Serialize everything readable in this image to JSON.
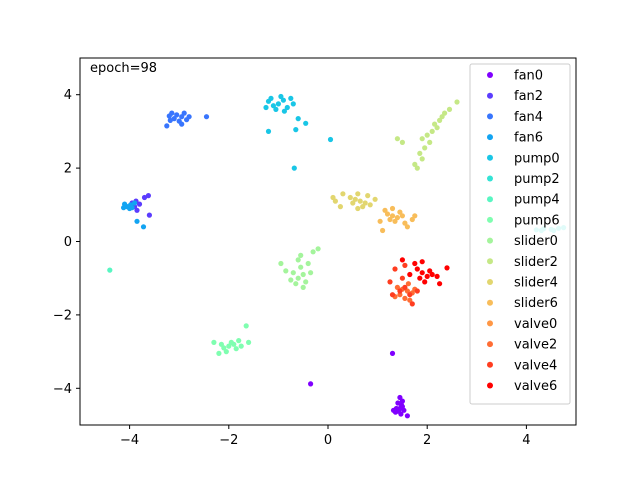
{
  "chart_data": {
    "type": "scatter",
    "annotation": "epoch=98",
    "xlim": [
      -5,
      5
    ],
    "ylim": [
      -5,
      5
    ],
    "xticks": [
      -4,
      -2,
      0,
      2,
      4
    ],
    "yticks": [
      -4,
      -2,
      0,
      2,
      4
    ],
    "xtick_labels": [
      "−4",
      "−2",
      "0",
      "2",
      "4"
    ],
    "ytick_labels": [
      "−4",
      "−2",
      "0",
      "2",
      "4"
    ],
    "grid": false,
    "legend_position": "upper right",
    "series": [
      {
        "name": "fan0",
        "color": "#8000ff",
        "points": [
          [
            1.45,
            -4.55
          ],
          [
            1.48,
            -4.45
          ],
          [
            1.42,
            -4.62
          ],
          [
            1.5,
            -4.5
          ],
          [
            1.38,
            -4.55
          ],
          [
            1.47,
            -4.7
          ],
          [
            1.53,
            -4.6
          ],
          [
            1.41,
            -4.4
          ],
          [
            1.5,
            -4.35
          ],
          [
            1.45,
            -4.25
          ],
          [
            1.36,
            -4.65
          ],
          [
            1.6,
            -4.75
          ],
          [
            1.32,
            -4.6
          ],
          [
            1.3,
            -3.05
          ],
          [
            -0.35,
            -3.88
          ]
        ]
      },
      {
        "name": "fan2",
        "color": "#5b3cfe",
        "points": [
          [
            -3.95,
            1.05
          ],
          [
            -3.87,
            1.1
          ],
          [
            -3.8,
            1.02
          ],
          [
            -3.7,
            1.2
          ],
          [
            -3.62,
            1.25
          ],
          [
            -3.9,
            0.95
          ],
          [
            -3.6,
            0.72
          ],
          [
            -3.85,
            0.85
          ]
        ]
      },
      {
        "name": "fan4",
        "color": "#3875fd",
        "points": [
          [
            -3.05,
            3.45
          ],
          [
            -2.95,
            3.4
          ],
          [
            -3.15,
            3.5
          ],
          [
            -2.85,
            3.32
          ],
          [
            -3.1,
            3.35
          ],
          [
            -2.9,
            3.5
          ],
          [
            -3.2,
            3.42
          ],
          [
            -3.0,
            3.28
          ],
          [
            -2.8,
            3.4
          ],
          [
            -3.18,
            3.3
          ],
          [
            -3.25,
            3.15
          ],
          [
            -2.95,
            3.2
          ],
          [
            -2.45,
            3.4
          ]
        ]
      },
      {
        "name": "fan6",
        "color": "#12a4f2",
        "points": [
          [
            -4.05,
            0.95
          ],
          [
            -3.95,
            0.92
          ],
          [
            -4.1,
            1.02
          ],
          [
            -3.98,
            1.0
          ],
          [
            -4.0,
            0.9
          ],
          [
            -3.9,
            1.05
          ],
          [
            -4.12,
            0.92
          ],
          [
            -3.85,
            0.55
          ],
          [
            -3.72,
            0.4
          ]
        ]
      },
      {
        "name": "pump0",
        "color": "#19c6e6",
        "points": [
          [
            -1.0,
            3.75
          ],
          [
            -0.9,
            3.85
          ],
          [
            -1.1,
            3.7
          ],
          [
            -0.82,
            3.65
          ],
          [
            -0.95,
            3.95
          ],
          [
            -1.2,
            3.82
          ],
          [
            -0.7,
            3.75
          ],
          [
            -1.05,
            3.6
          ],
          [
            -0.88,
            3.55
          ],
          [
            -1.15,
            3.9
          ],
          [
            -0.75,
            3.9
          ],
          [
            -1.25,
            3.65
          ],
          [
            -1.2,
            3.0
          ],
          [
            -0.65,
            3.05
          ],
          [
            -0.6,
            3.35
          ],
          [
            -0.45,
            3.22
          ],
          [
            -0.68,
            2.0
          ],
          [
            0.05,
            2.78
          ]
        ]
      },
      {
        "name": "pump2",
        "color": "#34e3d5",
        "points": [
          [
            4.35,
            0.35
          ],
          [
            4.5,
            0.33
          ],
          [
            4.65,
            0.36
          ],
          [
            4.2,
            0.32
          ],
          [
            4.55,
            0.3
          ],
          [
            4.75,
            0.38
          ],
          [
            4.3,
            0.3
          ]
        ]
      },
      {
        "name": "pump4",
        "color": "#58f6c2",
        "points": [
          [
            -4.4,
            -0.78
          ]
        ]
      },
      {
        "name": "pump6",
        "color": "#7ffeb0",
        "points": [
          [
            -2.0,
            -2.85
          ],
          [
            -1.9,
            -2.8
          ],
          [
            -2.1,
            -2.9
          ],
          [
            -1.85,
            -2.92
          ],
          [
            -1.95,
            -2.75
          ],
          [
            -2.15,
            -2.8
          ],
          [
            -1.75,
            -2.85
          ],
          [
            -2.05,
            -3.0
          ],
          [
            -1.8,
            -2.7
          ],
          [
            -1.6,
            -2.75
          ],
          [
            -1.65,
            -2.3
          ],
          [
            -2.3,
            -2.75
          ],
          [
            -2.2,
            -3.05
          ]
        ]
      },
      {
        "name": "slider0",
        "color": "#a4f49c",
        "points": [
          [
            -0.6,
            -1.0
          ],
          [
            -0.5,
            -0.9
          ],
          [
            -0.7,
            -0.85
          ],
          [
            -0.45,
            -1.1
          ],
          [
            -0.65,
            -1.15
          ],
          [
            -0.55,
            -0.7
          ],
          [
            -0.4,
            -0.6
          ],
          [
            -0.75,
            -1.05
          ],
          [
            -0.5,
            -1.25
          ],
          [
            -0.35,
            -0.85
          ],
          [
            -0.85,
            -0.8
          ],
          [
            -0.6,
            -0.5
          ],
          [
            -0.2,
            -0.2
          ],
          [
            -0.3,
            -0.28
          ],
          [
            -0.55,
            -0.38
          ],
          [
            -0.95,
            -0.6
          ]
        ]
      },
      {
        "name": "slider2",
        "color": "#c5e886",
        "points": [
          [
            2.0,
            2.9
          ],
          [
            2.1,
            3.0
          ],
          [
            1.9,
            2.8
          ],
          [
            2.2,
            3.1
          ],
          [
            2.05,
            2.7
          ],
          [
            1.95,
            2.55
          ],
          [
            2.25,
            3.3
          ],
          [
            1.85,
            2.4
          ],
          [
            2.35,
            3.5
          ],
          [
            2.15,
            3.2
          ],
          [
            1.75,
            2.1
          ],
          [
            2.45,
            3.6
          ],
          [
            1.9,
            2.25
          ],
          [
            1.5,
            2.7
          ],
          [
            1.4,
            2.8
          ],
          [
            2.6,
            3.8
          ],
          [
            2.3,
            3.4
          ],
          [
            1.8,
            2.0
          ]
        ]
      },
      {
        "name": "slider4",
        "color": "#e2d66f",
        "points": [
          [
            0.65,
            1.1
          ],
          [
            0.75,
            1.05
          ],
          [
            0.55,
            1.15
          ],
          [
            0.8,
            1.25
          ],
          [
            0.7,
            0.95
          ],
          [
            0.5,
            1.05
          ],
          [
            0.85,
            1.0
          ],
          [
            0.6,
            1.3
          ],
          [
            0.45,
            1.2
          ],
          [
            0.3,
            1.3
          ],
          [
            0.15,
            1.1
          ],
          [
            0.95,
            1.15
          ],
          [
            0.6,
            0.9
          ],
          [
            0.25,
            0.95
          ],
          [
            0.1,
            1.2
          ]
        ]
      },
      {
        "name": "slider6",
        "color": "#f8bd5a",
        "points": [
          [
            1.3,
            0.7
          ],
          [
            1.4,
            0.65
          ],
          [
            1.2,
            0.75
          ],
          [
            1.45,
            0.8
          ],
          [
            1.35,
            0.55
          ],
          [
            1.25,
            0.6
          ],
          [
            1.5,
            0.7
          ],
          [
            1.15,
            0.85
          ],
          [
            1.55,
            0.5
          ],
          [
            1.6,
            0.4
          ],
          [
            1.3,
            0.9
          ],
          [
            1.7,
            0.6
          ],
          [
            1.75,
            0.7
          ],
          [
            1.05,
            0.55
          ],
          [
            1.1,
            0.3
          ]
        ]
      },
      {
        "name": "valve0",
        "color": "#ff9745",
        "points": []
      },
      {
        "name": "valve2",
        "color": "#ff6d34",
        "points": [
          [
            1.6,
            -1.35
          ],
          [
            1.5,
            -1.3
          ],
          [
            1.7,
            -1.4
          ],
          [
            1.45,
            -1.45
          ],
          [
            1.62,
            -1.15
          ],
          [
            1.55,
            -1.55
          ],
          [
            1.75,
            -1.3
          ],
          [
            1.4,
            -1.25
          ],
          [
            1.65,
            -1.6
          ],
          [
            1.35,
            -1.5
          ]
        ]
      },
      {
        "name": "valve4",
        "color": "#ff3d20",
        "points": [
          [
            1.55,
            -1.25
          ],
          [
            1.65,
            -1.45
          ],
          [
            1.45,
            -1.35
          ],
          [
            1.35,
            -0.75
          ],
          [
            1.55,
            -0.65
          ],
          [
            1.8,
            -1.35
          ],
          [
            1.7,
            -1.7
          ],
          [
            1.5,
            -1.0
          ],
          [
            1.25,
            -1.1
          ],
          [
            1.3,
            -1.45
          ]
        ]
      },
      {
        "name": "valve6",
        "color": "#ff0000",
        "points": [
          [
            1.9,
            -0.85
          ],
          [
            2.0,
            -0.95
          ],
          [
            1.85,
            -1.0
          ],
          [
            2.05,
            -0.8
          ],
          [
            1.95,
            -1.1
          ],
          [
            1.8,
            -0.75
          ],
          [
            2.1,
            -0.9
          ],
          [
            1.75,
            -0.6
          ],
          [
            1.9,
            -0.55
          ],
          [
            2.2,
            -0.95
          ],
          [
            1.65,
            -0.9
          ],
          [
            1.5,
            -0.5
          ],
          [
            2.4,
            -0.72
          ],
          [
            2.25,
            -1.15
          ]
        ]
      }
    ]
  }
}
